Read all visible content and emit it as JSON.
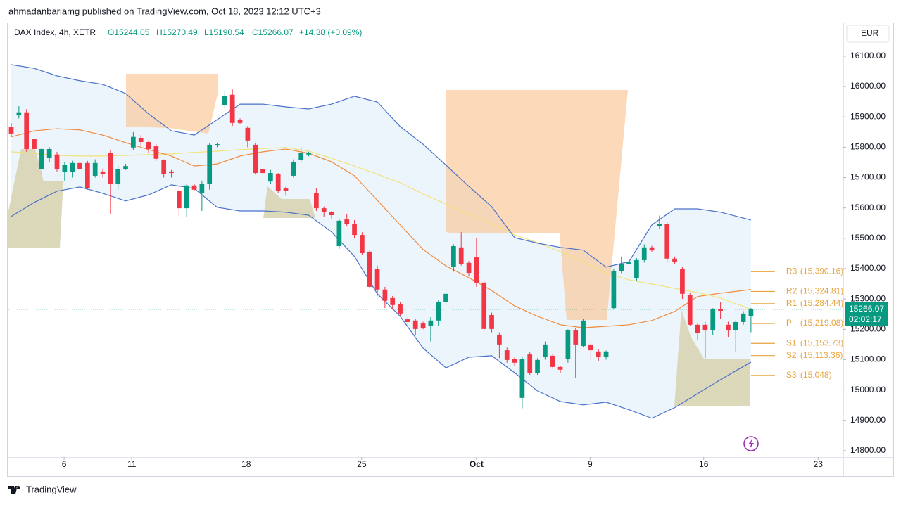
{
  "header": {
    "publisher": "ahmadanbariamg published on TradingView.com, Oct 18, 2023 12:12 UTC+3",
    "symbol": "DAX Index, 4h, XETR",
    "open": "O15244.05",
    "high": "H15270.49",
    "low": "L15190.54",
    "close": "C15266.07",
    "change": "+14.38 (+0.09%)",
    "currency": "EUR",
    "countdown": "02:02:17",
    "footer": "TradingView"
  },
  "chart_data": {
    "type": "candlestick",
    "up_color": "#089981",
    "down_color": "#f23645",
    "x": [
      0,
      1,
      2,
      3,
      4,
      5,
      6,
      7,
      8,
      9,
      10,
      11,
      12,
      13,
      14,
      15,
      16,
      17,
      18,
      19,
      20,
      21,
      22,
      23,
      24,
      25,
      26,
      27,
      28,
      29,
      30,
      31,
      32,
      33,
      34,
      35,
      36,
      37,
      38,
      39,
      40,
      41,
      42,
      43,
      44,
      45,
      46,
      47,
      48,
      49,
      50,
      51,
      52,
      53,
      54,
      55,
      56,
      57,
      58,
      59,
      60,
      61,
      62,
      63,
      64,
      65,
      66,
      67,
      68,
      69,
      70,
      71,
      72,
      73,
      74,
      75,
      76,
      77,
      78,
      79,
      80,
      81,
      82,
      83,
      84,
      85,
      86,
      87,
      88,
      89,
      90,
      91,
      92,
      93,
      94,
      95,
      96,
      97
    ],
    "open": [
      15868,
      15905,
      15915,
      15827,
      15729,
      15764,
      15776,
      15718,
      15718,
      15748,
      15748,
      15706,
      15720,
      15780,
      15678,
      15729,
      15799,
      15831,
      15817,
      15803,
      15757,
      15720,
      15655,
      15599,
      15674,
      15650,
      15678,
      15808,
      15938,
      15973,
      15891,
      15864,
      15808,
      15729,
      15687,
      15711,
      15664,
      15706,
      15757,
      15776,
      15650,
      15599,
      15586,
      15474,
      15562,
      15548,
      15511,
      15456,
      15400,
      15331,
      15303,
      15284,
      15233,
      15229,
      15219,
      15210,
      15229,
      15289,
      15405,
      15470,
      15419,
      15437,
      15354,
      15247,
      15182,
      15131,
      15103,
      14974,
      15117,
      15057,
      15108,
      15113,
      15076,
      15103,
      15196,
      15145,
      15150,
      15127,
      15108,
      15270,
      15391,
      15414,
      15368,
      15428,
      15470,
      15539,
      15548,
      15433,
      15400,
      15312,
      15215,
      15215,
      15196,
      15266,
      15215,
      15196,
      15224,
      15244.05
    ],
    "high": [
      15880,
      15935,
      15925,
      15835,
      15800,
      15800,
      15785,
      15750,
      15755,
      15752,
      15755,
      15760,
      15730,
      15790,
      15740,
      15745,
      15850,
      15840,
      15822,
      15810,
      15760,
      15725,
      15670,
      15680,
      15680,
      15690,
      15815,
      15815,
      15985,
      15990,
      15895,
      15870,
      15815,
      15735,
      15725,
      15715,
      15670,
      15760,
      15800,
      15785,
      15665,
      15605,
      15590,
      15565,
      15580,
      15560,
      15520,
      15460,
      15410,
      15340,
      15310,
      15290,
      15240,
      15235,
      15225,
      15240,
      15295,
      15335,
      15480,
      15520,
      15425,
      15500,
      15360,
      15255,
      15190,
      15140,
      15110,
      15110,
      15125,
      15105,
      15160,
      15120,
      15080,
      15200,
      15205,
      15235,
      15160,
      15135,
      15130,
      15400,
      15440,
      15430,
      15435,
      15480,
      15475,
      15575,
      15555,
      15440,
      15405,
      15320,
      15220,
      15225,
      15270,
      15290,
      15225,
      15230,
      15260,
      15270.49
    ],
    "low": [
      15838,
      15895,
      15785,
      15790,
      15710,
      15750,
      15720,
      15690,
      15700,
      15720,
      15660,
      15700,
      15700,
      15580,
      15660,
      15725,
      15790,
      15805,
      15780,
      15755,
      15700,
      15700,
      15570,
      15570,
      15655,
      15590,
      15660,
      15800,
      15930,
      15870,
      15875,
      15800,
      15710,
      15710,
      15680,
      15650,
      15640,
      15700,
      15750,
      15770,
      15590,
      15570,
      15565,
      15465,
      15540,
      15500,
      15445,
      15335,
      15310,
      15270,
      15265,
      15245,
      15215,
      15180,
      15200,
      15160,
      15210,
      15280,
      15390,
      15410,
      15375,
      15340,
      15195,
      15190,
      15105,
      15090,
      15080,
      14940,
      15050,
      15050,
      15100,
      15070,
      15055,
      15090,
      15040,
      15140,
      15100,
      15095,
      15100,
      15265,
      15385,
      15410,
      15360,
      15420,
      15455,
      15530,
      15420,
      15415,
      15300,
      15210,
      15165,
      15105,
      15180,
      15235,
      15175,
      15125,
      15215,
      15190.54
    ],
    "close": [
      15845,
      15915,
      15794,
      15794,
      15794,
      15794,
      15729,
      15741,
      15748,
      15729,
      15664,
      15748,
      15711,
      15678,
      15729,
      15738,
      15834,
      15817,
      15794,
      15762,
      15711,
      15715,
      15599,
      15674,
      15660,
      15678,
      15808,
      15810,
      15968,
      15880,
      15880,
      15822,
      15715,
      15715,
      15715,
      15655,
      15655,
      15752,
      15780,
      15780,
      15599,
      15586,
      15576,
      15558,
      15548,
      15511,
      15451,
      15340,
      15331,
      15294,
      15280,
      15252,
      15224,
      15201,
      15205,
      15229,
      15289,
      15317,
      15474,
      15414,
      15386,
      15354,
      15201,
      15201,
      15150,
      15099,
      15090,
      15103,
      15057,
      15099,
      15150,
      15076,
      15067,
      15196,
      15150,
      15229,
      15131,
      15108,
      15127,
      15391,
      15414,
      15423,
      15428,
      15470,
      15460,
      15548,
      15433,
      15423,
      15317,
      15215,
      15187,
      15196,
      15266,
      15261,
      15196,
      15224,
      15252,
      15266.07
    ],
    "bands": {
      "x": [
        0,
        3,
        6,
        9,
        12,
        15,
        18,
        21,
        24,
        27,
        30,
        33,
        36,
        39,
        42,
        45,
        48,
        51,
        54,
        57,
        60,
        63,
        66,
        69,
        72,
        75,
        78,
        81,
        84,
        87,
        90,
        93,
        97
      ],
      "upper_color": "#4a72c9",
      "middle_color": "#f08a3c",
      "lower_color": "#4a72c9",
      "ma_color": "#f2e27a",
      "fill_color": "#e8f2fb",
      "upper": [
        16072,
        16060,
        16035,
        16019,
        16007,
        15977,
        15910,
        15854,
        15840,
        15891,
        15942,
        15942,
        15933,
        15926,
        15942,
        15968,
        15949,
        15868,
        15810,
        15741,
        15671,
        15604,
        15502,
        15484,
        15470,
        15461,
        15405,
        15423,
        15544,
        15597,
        15597,
        15586,
        15560
      ],
      "middle": [
        15834,
        15854,
        15861,
        15857,
        15840,
        15815,
        15792,
        15771,
        15738,
        15745,
        15771,
        15785,
        15794,
        15780,
        15752,
        15706,
        15625,
        15544,
        15463,
        15409,
        15370,
        15328,
        15277,
        15243,
        15215,
        15205,
        15210,
        15215,
        15229,
        15259,
        15308,
        15319,
        15331
      ],
      "lower": [
        15572,
        15618,
        15655,
        15669,
        15648,
        15623,
        15643,
        15676,
        15664,
        15602,
        15590,
        15590,
        15586,
        15576,
        15521,
        15440,
        15317,
        15243,
        15138,
        15073,
        15108,
        15113,
        15057,
        14997,
        14962,
        14951,
        14960,
        14935,
        14907,
        14942,
        14988,
        15034,
        15092
      ],
      "ma": [
        15785,
        15780,
        15773,
        15771,
        15771,
        15773,
        15776,
        15778,
        15783,
        15787,
        15792,
        15796,
        15799,
        15787,
        15764,
        15738,
        15711,
        15683,
        15646,
        15613,
        15579,
        15548,
        15511,
        15486,
        15456,
        15423,
        15386,
        15363,
        15349,
        15335,
        15321,
        15303,
        15266
      ]
    },
    "pivots": {
      "color": "#e8a33d",
      "levels": [
        {
          "name": "R3",
          "value": 15390.16,
          "label": "(15,390.16)"
        },
        {
          "name": "R2",
          "value": 15324.81,
          "label": "(15,324.81)"
        },
        {
          "name": "R1",
          "value": 15284.44,
          "label": "(15,284.44)"
        },
        {
          "name": "P",
          "value": 15219.08,
          "label": "(15,219.08)"
        },
        {
          "name": "S1",
          "value": 15153.73,
          "label": "(15,153.73)"
        },
        {
          "name": "S2",
          "value": 15113.36,
          "label": "(15,113.36)"
        },
        {
          "name": "S3",
          "value": 15048,
          "label": "(15,048)"
        }
      ]
    },
    "last_price": {
      "value": 15266.07,
      "label": "15266.07"
    },
    "xlim": [
      -0.37,
      109.1
    ],
    "xticks": [
      {
        "value": 6.93,
        "label": "6"
      },
      {
        "value": 15.8,
        "label": "11"
      },
      {
        "value": 30.8,
        "label": "18"
      },
      {
        "value": 45.95,
        "label": "25"
      },
      {
        "value": 61,
        "label": "Oct"
      },
      {
        "value": 75.9,
        "label": "9"
      },
      {
        "value": 90.8,
        "label": "16"
      },
      {
        "value": 105.8,
        "label": "23"
      }
    ],
    "ylim": [
      14779,
      16211
    ],
    "yticks": [
      {
        "value": 14800,
        "label": "14800.00"
      },
      {
        "value": 14900,
        "label": "14900.00"
      },
      {
        "value": 15000,
        "label": "15000.00"
      },
      {
        "value": 15100,
        "label": "15100.00"
      },
      {
        "value": 15200,
        "label": "15200.00"
      },
      {
        "value": 15300,
        "label": "15300.00"
      },
      {
        "value": 15400,
        "label": "15400.00"
      },
      {
        "value": 15500,
        "label": "15500.00"
      },
      {
        "value": 15600,
        "label": "15600.00"
      },
      {
        "value": 15700,
        "label": "15700.00"
      },
      {
        "value": 15800,
        "label": "15800.00"
      },
      {
        "value": 15900,
        "label": "15900.00"
      },
      {
        "value": 16000,
        "label": "16000.00"
      },
      {
        "value": 16100,
        "label": "16100.00"
      }
    ],
    "grid": false
  }
}
